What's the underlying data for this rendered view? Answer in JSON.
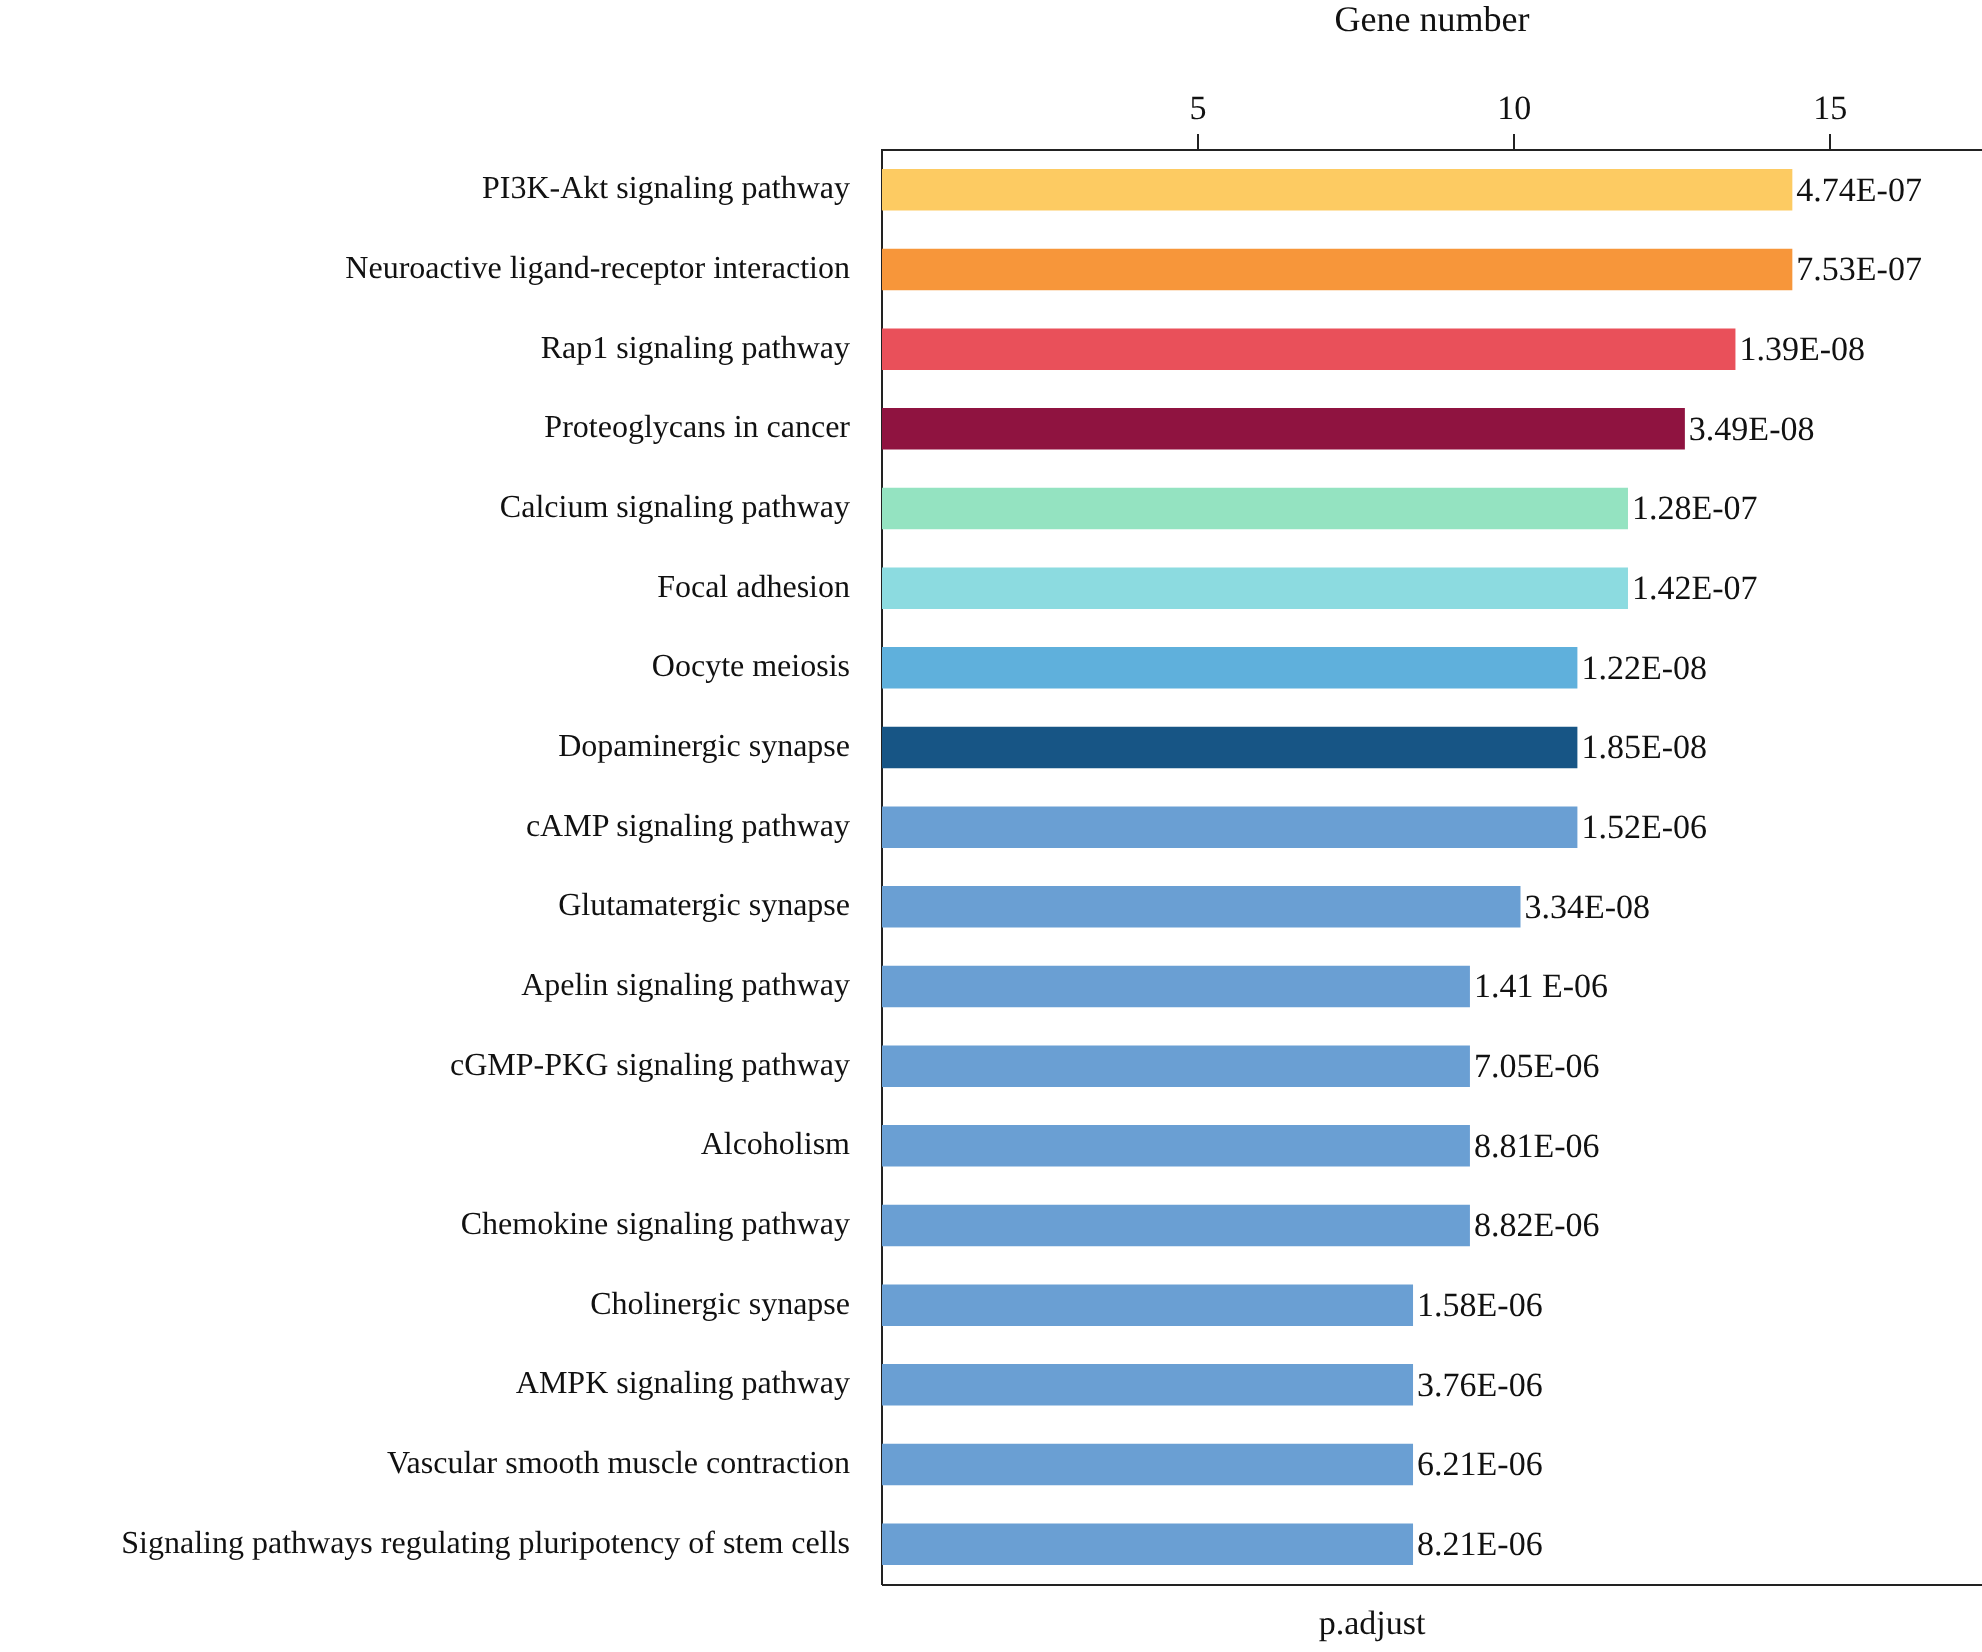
{
  "chart_data": {
    "type": "bar",
    "orientation": "horizontal",
    "xlabel": "Gene number",
    "categories": [
      "PI3K-Akt signaling pathway",
      "Neuroactive ligand-receptor interaction",
      "Rap1 signaling pathway",
      "Proteoglycans in cancer",
      "Calcium signaling pathway",
      "Focal adhesion",
      "Oocyte meiosis",
      "Dopaminergic synapse",
      "cAMP signaling pathway",
      "Glutamatergic synapse",
      "Apelin signaling pathway",
      "cGMP-PKG signaling pathway",
      "Alcoholism",
      "Chemokine signaling pathway",
      "Cholinergic synapse",
      "AMPK signaling pathway",
      "Vascular smooth muscle contraction",
      "Signaling pathways regulating pluripotency of stem cells"
    ],
    "values": [
      14.4,
      14.4,
      13.5,
      12.7,
      11.8,
      11.8,
      11.0,
      11.0,
      11.0,
      10.1,
      9.3,
      9.3,
      9.3,
      9.3,
      8.4,
      8.4,
      8.4,
      8.4
    ],
    "colors": [
      "#fdcb62",
      "#f7963a",
      "#e9505a",
      "#8f1340",
      "#94e3c1",
      "#8cdbe0",
      "#5fb0dc",
      "#175585",
      "#6a9fd3",
      "#6a9fd3",
      "#6a9fd3",
      "#6a9fd3",
      "#6a9fd3",
      "#6a9fd3",
      "#6a9fd3",
      "#6a9fd3",
      "#6a9fd3",
      "#6a9fd3"
    ],
    "xlim": [
      0,
      17.4
    ],
    "xticks": [
      5,
      10,
      15
    ],
    "annotations": [
      {
        "text": "4.74E-07",
        "x": 14.4,
        "y": "PI3K-Akt signaling pathway"
      },
      {
        "text": "7.53E-07",
        "x": 14.4,
        "y": "Neuroactive ligand-receptor interaction"
      },
      {
        "text": "1.39E-08",
        "x": 13.5,
        "y": "Rap1 signaling pathway"
      },
      {
        "text": "3.49E-08",
        "x": 12.7,
        "y": "Proteoglycans in cancer"
      },
      {
        "text": "1.28E-07",
        "x": 11.8,
        "y": "Calcium signaling pathway"
      },
      {
        "text": "1.42E-07",
        "x": 11.8,
        "y": "Focal adhesion"
      },
      {
        "text": "1.22E-08",
        "x": 11.0,
        "y": "Oocyte meiosis"
      },
      {
        "text": "1.85E-08",
        "x": 11.0,
        "y": "Dopaminergic synapse"
      },
      {
        "text": "1.52E-06",
        "x": 11.0,
        "y": "cAMP signaling pathway"
      },
      {
        "text": "3.34E-08",
        "x": 10.1,
        "y": "Glutamatergic synapse"
      },
      {
        "text": "1.41 E-06",
        "x": 9.3,
        "y": "Apelin signaling pathway"
      },
      {
        "text": "7.05E-06",
        "x": 9.3,
        "y": "cGMP-PKG signaling pathway"
      },
      {
        "text": "8.81E-06",
        "x": 9.3,
        "y": "Alcoholism"
      },
      {
        "text": "8.82E-06",
        "x": 9.3,
        "y": "Chemokine signaling pathway"
      },
      {
        "text": "1.58E-06",
        "x": 8.4,
        "y": "Cholinergic synapse"
      },
      {
        "text": "3.76E-06",
        "x": 8.4,
        "y": "AMPK signaling pathway"
      },
      {
        "text": "6.21E-06",
        "x": 8.4,
        "y": "Vascular smooth muscle contraction"
      },
      {
        "text": "8.21E-06",
        "x": 8.4,
        "y": "Signaling pathways regulating pluripotency of stem cells"
      },
      "p.adjust"
    ],
    "grid": false,
    "legend": false
  }
}
